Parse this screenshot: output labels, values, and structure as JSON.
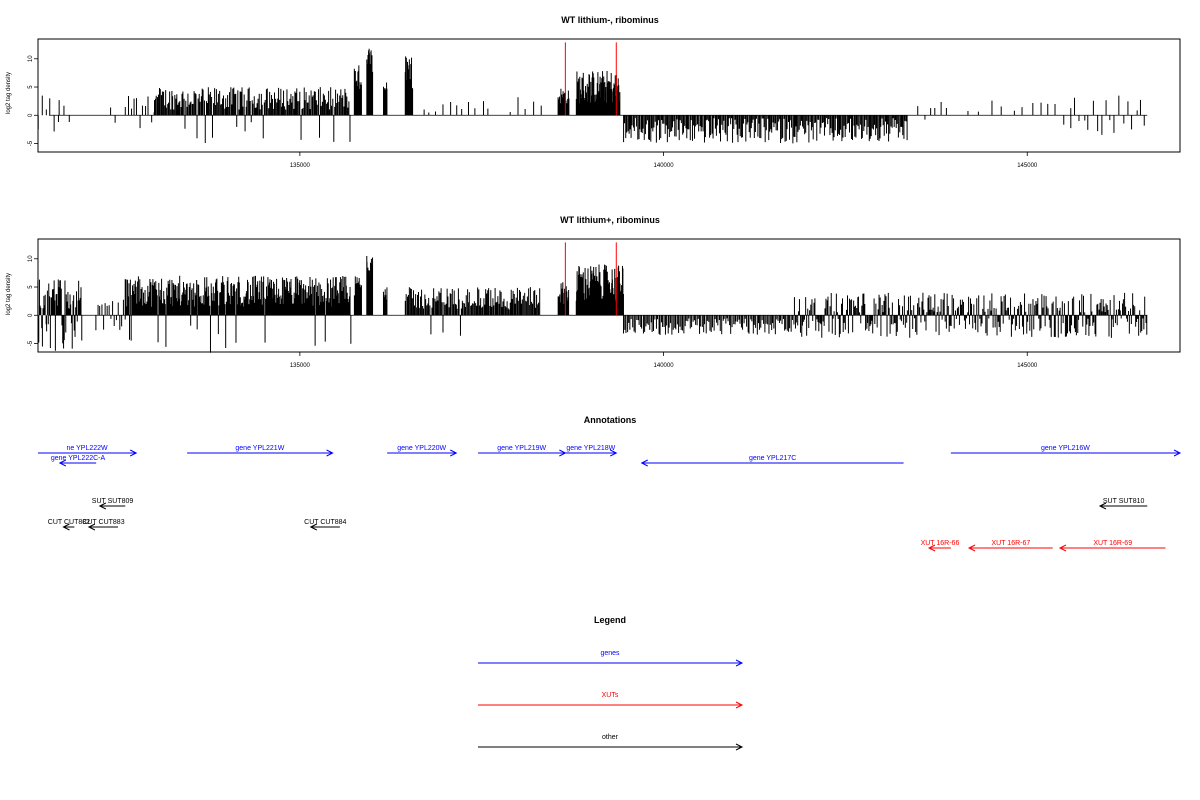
{
  "chart_data": [
    {
      "type": "bar",
      "title": "WT lithium-, ribominus",
      "ylabel": "log2 tag density",
      "xlim": [
        131400,
        147100
      ],
      "ylim": [
        -6.5,
        13.5
      ],
      "y_ticks": [
        -5,
        0,
        5,
        10
      ],
      "x_ticks": [
        135000,
        140000,
        145000
      ],
      "x_tick_labels": [
        "135000",
        "140000",
        "145000"
      ],
      "markers": [
        138650,
        139350
      ],
      "marker_color": "#ff0000",
      "segments": [
        {
          "x0": 131400,
          "x1": 131700,
          "gap": 55,
          "min": 0.5,
          "max": 3.5,
          "sign": 1,
          "neg_frac": 0.4
        },
        {
          "x0": 131700,
          "x1": 131850,
          "gap": 60,
          "min": 0.5,
          "max": 3,
          "sign": 1,
          "neg_frac": 0.6
        },
        {
          "x0": 132400,
          "x1": 132500,
          "gap": 70,
          "min": 0.5,
          "max": 1.5,
          "sign": 1,
          "neg_frac": 0.4
        },
        {
          "x0": 132600,
          "x1": 133000,
          "gap": 40,
          "min": 0.5,
          "max": 3.5,
          "sign": 1,
          "neg_frac": 0.15
        },
        {
          "x0": 133000,
          "x1": 135700,
          "gap": 14,
          "min": 1,
          "max": 5,
          "sign": 1,
          "neg_frac": 0.06
        },
        {
          "x0": 135750,
          "x1": 135850,
          "gap": 6,
          "min": 4,
          "max": 9,
          "sign": 1,
          "neg_frac": 0
        },
        {
          "x0": 135920,
          "x1": 136000,
          "gap": 4,
          "min": 6,
          "max": 12.5,
          "sign": 1,
          "neg_frac": 0
        },
        {
          "x0": 136150,
          "x1": 136200,
          "gap": 6,
          "min": 3,
          "max": 6,
          "sign": 1,
          "neg_frac": 0
        },
        {
          "x0": 136450,
          "x1": 136550,
          "gap": 5,
          "min": 4,
          "max": 11,
          "sign": 1,
          "neg_frac": 0
        },
        {
          "x0": 136700,
          "x1": 137600,
          "gap": 90,
          "min": 0.5,
          "max": 3,
          "sign": 1,
          "neg_frac": 0
        },
        {
          "x0": 137900,
          "x1": 138350,
          "gap": 100,
          "min": 0.5,
          "max": 3.5,
          "sign": 1,
          "neg_frac": 0
        },
        {
          "x0": 138550,
          "x1": 138700,
          "gap": 10,
          "min": 2,
          "max": 5,
          "sign": 1,
          "neg_frac": 0
        },
        {
          "x0": 138800,
          "x1": 139400,
          "gap": 8,
          "min": 2,
          "max": 8,
          "sign": 1,
          "neg_frac": 0
        },
        {
          "x0": 139450,
          "x1": 143350,
          "gap": 15,
          "min": 0.5,
          "max": 5,
          "sign": -1,
          "neg_frac": 0
        },
        {
          "x0": 143500,
          "x1": 143900,
          "gap": 80,
          "min": 0.5,
          "max": 3,
          "sign": 1,
          "neg_frac": 0.4
        },
        {
          "x0": 144200,
          "x1": 145100,
          "gap": 150,
          "min": 0.5,
          "max": 3,
          "sign": 1,
          "neg_frac": 0
        },
        {
          "x0": 145200,
          "x1": 145600,
          "gap": 100,
          "min": 0.5,
          "max": 2.5,
          "sign": 1,
          "neg_frac": 0.3
        },
        {
          "x0": 145600,
          "x1": 146650,
          "gap": 60,
          "min": 0.5,
          "max": 3.5,
          "sign": 1,
          "neg_frac": 0.5
        }
      ]
    },
    {
      "type": "bar",
      "title": "WT lithium+, ribominus",
      "ylabel": "log2 tag density",
      "xlim": [
        131400,
        147100
      ],
      "ylim": [
        -6.5,
        13.5
      ],
      "y_ticks": [
        -5,
        0,
        5,
        10
      ],
      "x_ticks": [
        135000,
        140000,
        145000
      ],
      "x_tick_labels": [
        "135000",
        "140000",
        "145000"
      ],
      "markers": [
        138650,
        139350
      ],
      "marker_color": "#ff0000",
      "segments": [
        {
          "x0": 131400,
          "x1": 132000,
          "gap": 10,
          "min": 1,
          "max": 6.5,
          "sign": 1,
          "neg_frac": 0.3
        },
        {
          "x0": 132200,
          "x1": 132600,
          "gap": 25,
          "min": 0.5,
          "max": 3,
          "sign": 1,
          "neg_frac": 0.5
        },
        {
          "x0": 132600,
          "x1": 135700,
          "gap": 10,
          "min": 1.5,
          "max": 7,
          "sign": 1,
          "neg_frac": 0.05
        },
        {
          "x0": 135750,
          "x1": 135850,
          "gap": 6,
          "min": 3,
          "max": 7,
          "sign": 1,
          "neg_frac": 0
        },
        {
          "x0": 135920,
          "x1": 136000,
          "gap": 4,
          "min": 5,
          "max": 12,
          "sign": 1,
          "neg_frac": 0
        },
        {
          "x0": 136150,
          "x1": 136200,
          "gap": 6,
          "min": 2,
          "max": 5,
          "sign": 1,
          "neg_frac": 0
        },
        {
          "x0": 136450,
          "x1": 138300,
          "gap": 14,
          "min": 1,
          "max": 5,
          "sign": 1,
          "neg_frac": 0.03
        },
        {
          "x0": 138550,
          "x1": 138700,
          "gap": 8,
          "min": 2,
          "max": 6,
          "sign": 1,
          "neg_frac": 0
        },
        {
          "x0": 138800,
          "x1": 139450,
          "gap": 6,
          "min": 2,
          "max": 9,
          "sign": 1,
          "neg_frac": 0
        },
        {
          "x0": 139450,
          "x1": 141800,
          "gap": 18,
          "min": 0.5,
          "max": 3.5,
          "sign": -1,
          "neg_frac": 0
        },
        {
          "x0": 141800,
          "x1": 146650,
          "gap": 14,
          "min": 0.5,
          "max": 4,
          "sign": 1,
          "neg_frac": 0.45
        }
      ]
    }
  ],
  "annotations": {
    "title": "Annotations",
    "features": [
      {
        "label": "ne YPL222W",
        "x0": 131400,
        "x1": 132750,
        "row": 0,
        "color": "#0000ff",
        "dir": "right"
      },
      {
        "label": "gene YPL222C-A",
        "x0": 131700,
        "x1": 132200,
        "row": 1,
        "color": "#0000ff",
        "dir": "left"
      },
      {
        "label": "gene YPL221W",
        "x0": 133450,
        "x1": 135450,
        "row": 0,
        "color": "#0000ff",
        "dir": "right"
      },
      {
        "label": "gene YPL220W",
        "x0": 136200,
        "x1": 137150,
        "row": 0,
        "color": "#0000ff",
        "dir": "right"
      },
      {
        "label": "gene YPL219W",
        "x0": 137450,
        "x1": 138650,
        "row": 0,
        "color": "#0000ff",
        "dir": "right"
      },
      {
        "label": "gene YPL218W",
        "x0": 138650,
        "x1": 139350,
        "row": 0,
        "color": "#0000ff",
        "dir": "right"
      },
      {
        "label": "gene YPL217C",
        "x0": 139700,
        "x1": 143300,
        "row": 1,
        "color": "#0000ff",
        "dir": "left"
      },
      {
        "label": "gene YPL216W",
        "x0": 143950,
        "x1": 147100,
        "row": 0,
        "color": "#0000ff",
        "dir": "right"
      },
      {
        "label": "SUT SUT809",
        "x0": 132250,
        "x1": 132600,
        "row": 2,
        "color": "#000000",
        "dir": "left"
      },
      {
        "label": "SUT SUT810",
        "x0": 146000,
        "x1": 146650,
        "row": 2,
        "color": "#000000",
        "dir": "left"
      },
      {
        "label": "CUT CUT882",
        "x0": 131750,
        "x1": 131900,
        "row": 3,
        "color": "#000000",
        "dir": "left"
      },
      {
        "label": "CUT CUT883",
        "x0": 132100,
        "x1": 132500,
        "row": 3,
        "color": "#000000",
        "dir": "left"
      },
      {
        "label": "CUT CUT884",
        "x0": 135150,
        "x1": 135550,
        "row": 3,
        "color": "#000000",
        "dir": "left"
      },
      {
        "label": "XUT 16R-66",
        "x0": 143650,
        "x1": 143950,
        "row": 4,
        "color": "#ff0000",
        "dir": "left"
      },
      {
        "label": "XUT 16R-67",
        "x0": 144200,
        "x1": 145350,
        "row": 4,
        "color": "#ff0000",
        "dir": "left"
      },
      {
        "label": "XUT 16R-69",
        "x0": 145450,
        "x1": 146900,
        "row": 4,
        "color": "#ff0000",
        "dir": "left"
      }
    ]
  },
  "legend": {
    "title": "Legend",
    "items": [
      {
        "label": "genes",
        "color": "#0000ff"
      },
      {
        "label": "XUTs",
        "color": "#ff0000"
      },
      {
        "label": "other",
        "color": "#000000"
      }
    ]
  }
}
